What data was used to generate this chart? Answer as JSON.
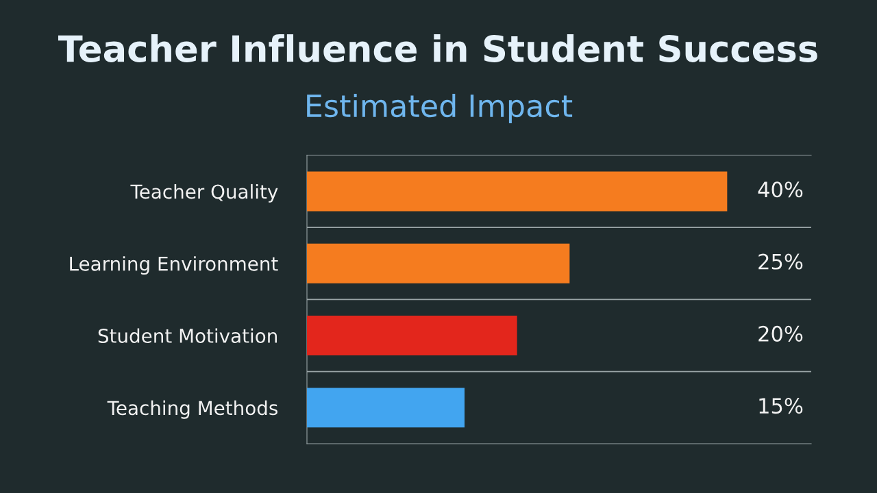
{
  "chart_data": {
    "type": "bar",
    "orientation": "horizontal",
    "title": "Teacher Influence in Student Success",
    "subtitle": "Estimated Impact",
    "categories": [
      "Teacher Quality",
      "Learning Environment",
      "Student Motivation",
      "Teaching Methods"
    ],
    "values": [
      40,
      25,
      20,
      15
    ],
    "value_labels": [
      "40%",
      "25%",
      "20%",
      "15%"
    ],
    "colors": [
      "#f57c1f",
      "#f57c1f",
      "#e3261c",
      "#42a5f0"
    ],
    "xlim": [
      0,
      48
    ],
    "grid": "y"
  }
}
